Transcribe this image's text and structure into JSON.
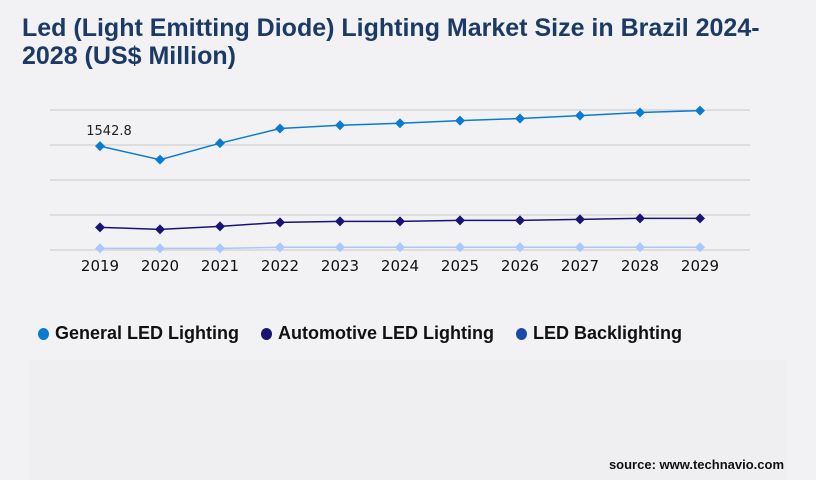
{
  "title": "Led (Light Emitting Diode) Lighting Market Size in Brazil 2024-2028 (US$ Million)",
  "source": "source: www.technavio.com",
  "chart_data": {
    "type": "line",
    "title": "Led (Light Emitting Diode) Lighting Market Size in Brazil 2024-2028 (US$ Million)",
    "categories": [
      "2019",
      "2020",
      "2021",
      "2022",
      "2023",
      "2024",
      "2025",
      "2026",
      "2027",
      "2028",
      "2029"
    ],
    "ylim": [
      0,
      2080
    ],
    "grid": true,
    "y_tick_labels_shown": false,
    "legend_position": "bottom",
    "series": [
      {
        "name": "General LED Lighting",
        "color": "#0a7bd3",
        "legend_color": "#0a7bd3",
        "values": [
          1542.8,
          1342,
          1587,
          1805,
          1854,
          1883,
          1923,
          1953,
          1997,
          2042,
          2071
        ]
      },
      {
        "name": "Automotive LED Lighting",
        "color": "#1a1472",
        "legend_color": "#1a1472",
        "values": [
          337,
          307,
          351,
          411,
          426,
          426,
          440,
          440,
          455,
          470,
          470
        ]
      },
      {
        "name": "LED Backlighting",
        "color": "#a9c8fb",
        "legend_color": "#1a4aa8",
        "values": [
          25,
          25,
          25,
          40,
          40,
          40,
          40,
          40,
          40,
          40,
          40
        ]
      }
    ],
    "annotations": [
      {
        "category": "2019",
        "series": "General LED Lighting",
        "text": "1542.8"
      }
    ]
  }
}
